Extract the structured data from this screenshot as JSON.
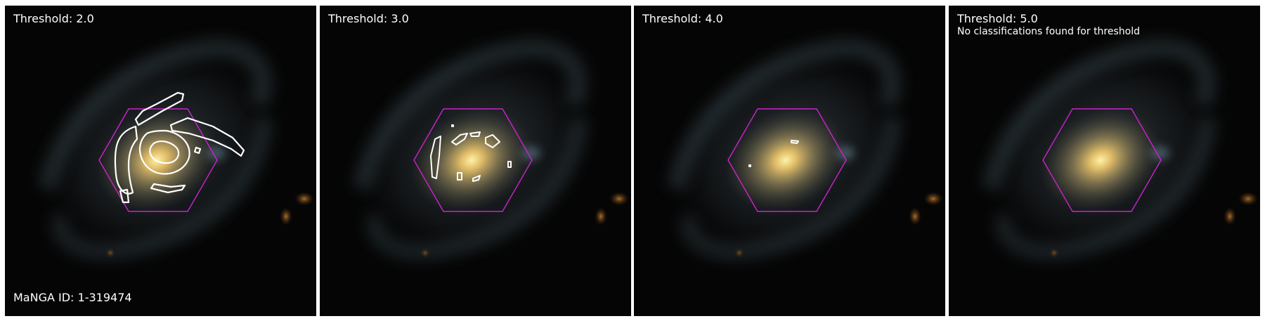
{
  "panels": [
    {
      "threshold_label": "Threshold: 2.0"
    },
    {
      "threshold_label": "Threshold: 3.0"
    },
    {
      "threshold_label": "Threshold: 4.0"
    },
    {
      "threshold_label": "Threshold: 5.0",
      "note": "No classifications found for threshold"
    }
  ],
  "manga_id_label": "MaNGA ID: 1-319474",
  "colors": {
    "hexagon": "#cc22cc",
    "contour": "#ffffff",
    "core": "#fff0a0",
    "background": "#050505"
  }
}
